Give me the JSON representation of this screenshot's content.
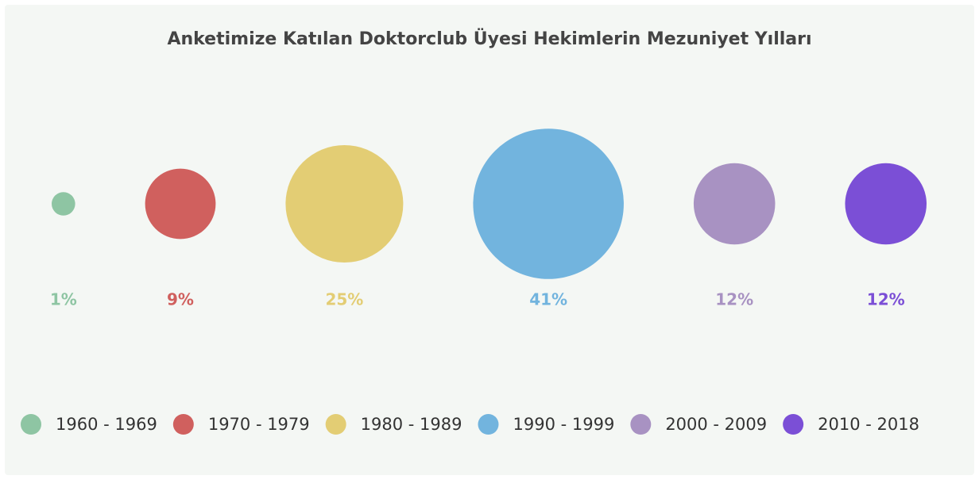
{
  "chart_data": {
    "type": "bubble",
    "title": "Anketimize Katılan Doktorclub Üyesi Hekimlerin Mezuniyet Yılları",
    "categories": [
      "1960 - 1969",
      "1970 - 1979",
      "1980 - 1989",
      "1990 - 1999",
      "2000 - 2009",
      "2010 - 2018"
    ],
    "values": [
      1,
      9,
      25,
      41,
      12,
      12
    ],
    "value_labels": [
      "1%",
      "9%",
      "25%",
      "41%",
      "12%",
      "12%"
    ],
    "colors": [
      "#8ec5a3",
      "#d0605e",
      "#e3cd74",
      "#72b4de",
      "#a892c2",
      "#7b4fd6"
    ]
  }
}
